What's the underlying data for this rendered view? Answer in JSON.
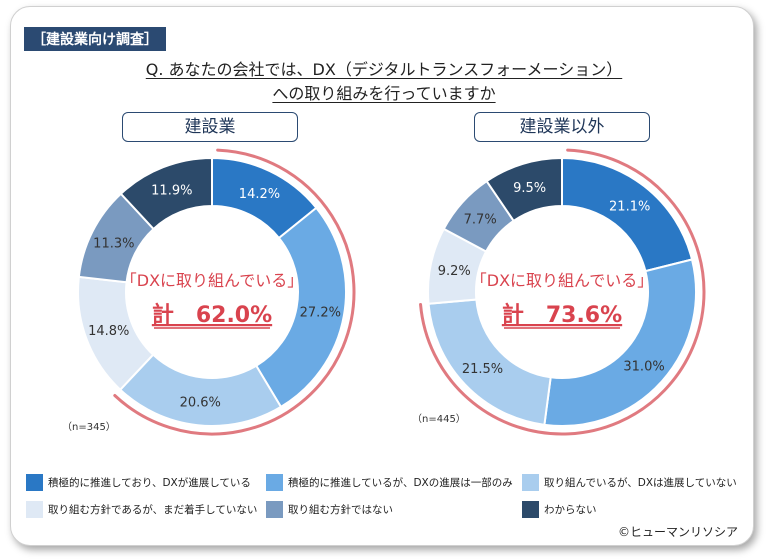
{
  "tag": "［建設業向け調査］",
  "question_line1": "Q. あなたの会社では、DX（デジタルトランスフォーメーション）",
  "question_line2": "への取り組みを行っていますか",
  "colors": [
    "#2a78c5",
    "#6aaae4",
    "#a9cdee",
    "#dfe9f5",
    "#7a9ac0",
    "#2c4a6a"
  ],
  "legend": [
    "積極的に推進しており、DXが進展している",
    "積極的に推進しているが、DXの進展は一部のみ",
    "取り組んでいるが、DXは進展していない",
    "取り組む方針であるが、まだ着手していない",
    "取り組む方針ではない",
    "わからない"
  ],
  "credit": "©ヒューマンリソシア",
  "chart_data": [
    {
      "type": "pie",
      "title": "建設業",
      "n_label": "（n=345）",
      "center_label": "「DXに取り組んでいる」",
      "center_total": "計　62.0%",
      "categories": [
        "積極的に推進しており、DXが進展している",
        "積極的に推進しているが、DXの進展は一部のみ",
        "取り組んでいるが、DXは進展していない",
        "取り組む方針であるが、まだ着手していない",
        "取り組む方針ではない",
        "わからない"
      ],
      "values": [
        14.2,
        27.2,
        20.6,
        14.8,
        11.3,
        11.9
      ],
      "labels": [
        "14.2%",
        "27.2%",
        "20.6%",
        "14.8%",
        "11.3%",
        "11.9%"
      ]
    },
    {
      "type": "pie",
      "title": "建設業以外",
      "n_label": "（n=445）",
      "center_label": "「DXに取り組んでいる」",
      "center_total": "計　73.6%",
      "categories": [
        "積極的に推進しており、DXが進展している",
        "積極的に推進しているが、DXの進展は一部のみ",
        "取り組んでいるが、DXは進展していない",
        "取り組む方針であるが、まだ着手していない",
        "取り組む方針ではない",
        "わからない"
      ],
      "values": [
        21.1,
        31.0,
        21.5,
        9.2,
        7.7,
        9.5
      ],
      "labels": [
        "21.1%",
        "31.0%",
        "21.5%",
        "9.2%",
        "7.7%",
        "9.5%"
      ]
    }
  ]
}
